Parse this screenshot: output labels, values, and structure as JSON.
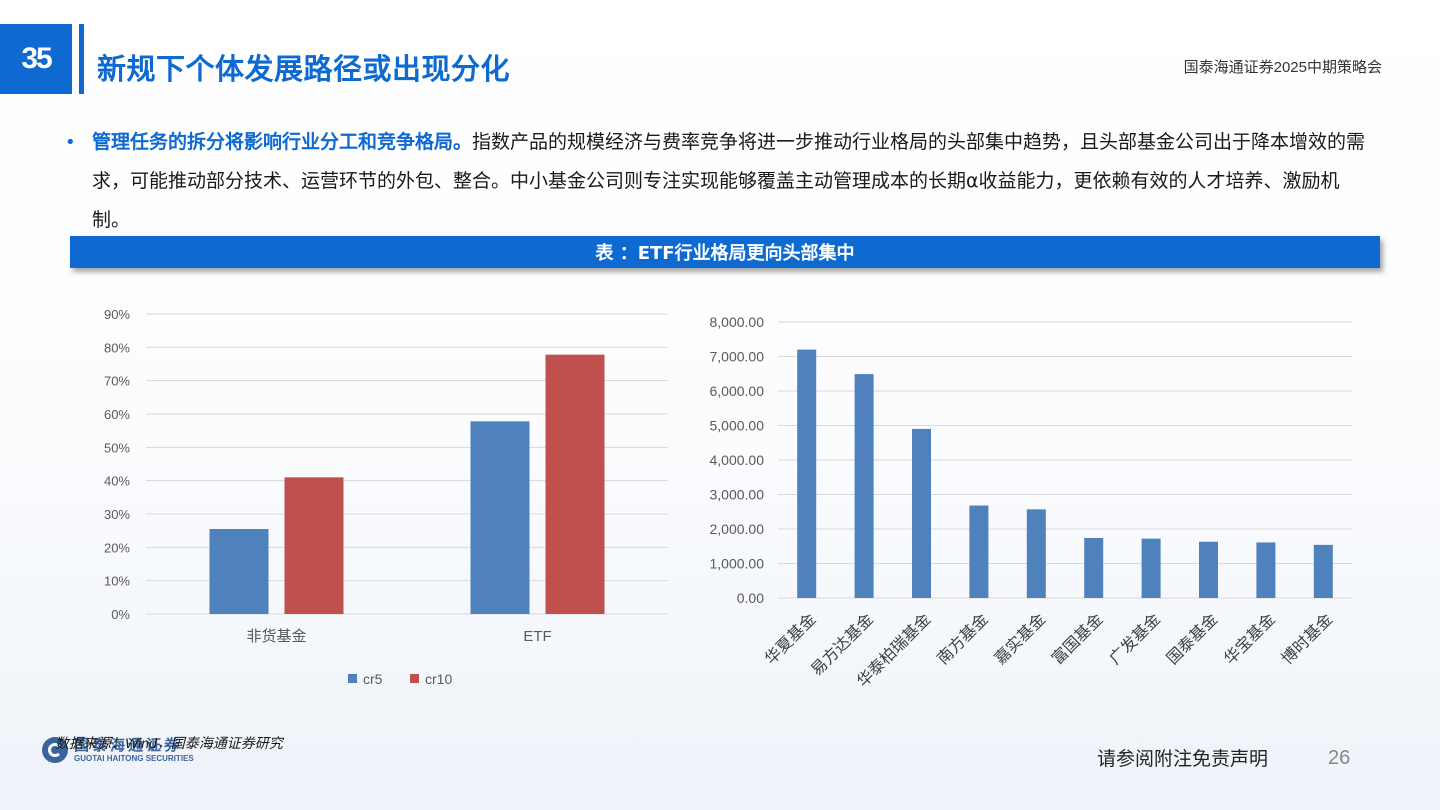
{
  "header": {
    "slide_number": "35",
    "title": "新规下个体发展路径或出现分化",
    "right_label": "国泰海通证券2025中期策略会"
  },
  "bullet": {
    "bold": "管理任务的拆分将影响行业分工和竞争格局。",
    "text": "指数产品的规模经济与费率竞争将进一步推动行业格局的头部集中趋势，且头部基金公司出于降本增效的需求，可能推动部分技术、运营环节的外包、整合。中小基金公司则专注实现能够覆盖主动管理成本的长期α收益能力，更依赖有效的人才培养、激励机制。"
  },
  "table_title": "表  ：ETF行业格局更向头部集中",
  "chart_data": [
    {
      "type": "bar",
      "categories": [
        "非货基金",
        "ETF"
      ],
      "series": [
        {
          "name": "cr5",
          "values": [
            0.255,
            0.578
          ],
          "color": "#4f81bd"
        },
        {
          "name": "cr10",
          "values": [
            0.41,
            0.778
          ],
          "color": "#c0504d"
        }
      ],
      "ylim": [
        0,
        0.9
      ],
      "yticks": [
        "0%",
        "10%",
        "20%",
        "30%",
        "40%",
        "50%",
        "60%",
        "70%",
        "80%",
        "90%"
      ],
      "legend": "bottom",
      "grid": true
    },
    {
      "type": "bar",
      "categories": [
        "华夏基金",
        "易方达基金",
        "华泰柏瑞基金",
        "南方基金",
        "嘉实基金",
        "富国基金",
        "广发基金",
        "国泰基金",
        "华宝基金",
        "博时基金"
      ],
      "values": [
        7200,
        6490,
        4900,
        2680,
        2570,
        1740,
        1720,
        1630,
        1610,
        1540
      ],
      "ylim": [
        0,
        8000
      ],
      "yticks": [
        "0.00",
        "1,000.00",
        "2,000.00",
        "3,000.00",
        "4,000.00",
        "5,000.00",
        "6,000.00",
        "7,000.00",
        "8,000.00"
      ],
      "color": "#4f81bd",
      "grid": true
    }
  ],
  "footer": {
    "source": "数据来源：Wind，国泰海通证券研究",
    "logo_cn": "国泰海通证券",
    "logo_en": "GUOTAI HAITONG SECURITIES",
    "disclaimer": "请参阅附注免责声明",
    "page": "26"
  }
}
